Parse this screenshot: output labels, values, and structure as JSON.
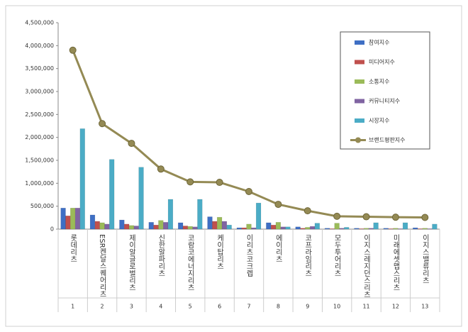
{
  "chart_data": {
    "type": "bar",
    "categories": [
      "롯데리츠",
      "ESR켄달스퀘어리츠",
      "제이알글로벌리츠",
      "신한알파리츠",
      "코람코에너지리츠",
      "케이탑리츠",
      "이리츠코크렙",
      "에이리츠",
      "코프라임리츠",
      "모두투어리츠",
      "이지스레지던스리츠",
      "미래에셋맵스리츠",
      "이지스밸류리츠"
    ],
    "ranks": [
      "1",
      "2",
      "3",
      "4",
      "5",
      "6",
      "7",
      "8",
      "9",
      "10",
      "11",
      "12",
      "13"
    ],
    "ylim": [
      0,
      4500000
    ],
    "yticks": [
      0,
      {
        "value": 500000,
        "label": "500,000"
      },
      {
        "value": 1000000,
        "label": "1,000,000"
      },
      {
        "value": 1500000,
        "label": "1,500,000"
      },
      {
        "value": 2000000,
        "label": "2,000,000"
      },
      {
        "value": 2500000,
        "label": "2,500,000"
      },
      {
        "value": 3000000,
        "label": "3,000,000"
      },
      {
        "value": 3500000,
        "label": "3,500,000"
      },
      {
        "value": 4000000,
        "label": "4,000,000"
      },
      {
        "value": 4500000,
        "label": "4,500,000"
      }
    ],
    "series": [
      {
        "name": "참여지수",
        "color": "#3f6fc4",
        "values": [
          460000,
          310000,
          200000,
          150000,
          140000,
          270000,
          30000,
          140000,
          50000,
          20000,
          20000,
          20000,
          30000
        ]
      },
      {
        "name": "미디어지수",
        "color": "#c0504d",
        "values": [
          290000,
          170000,
          110000,
          90000,
          70000,
          170000,
          30000,
          90000,
          20000,
          10000,
          10000,
          10000,
          10000
        ]
      },
      {
        "name": "소통지수",
        "color": "#9bbb59",
        "values": [
          460000,
          140000,
          80000,
          190000,
          60000,
          260000,
          110000,
          150000,
          40000,
          130000,
          20000,
          20000,
          20000
        ]
      },
      {
        "name": "커뮤니티지수",
        "color": "#8064a2",
        "values": [
          460000,
          110000,
          70000,
          150000,
          50000,
          170000,
          30000,
          50000,
          60000,
          20000,
          20000,
          10000,
          10000
        ]
      },
      {
        "name": "시장지수",
        "color": "#4bacc6",
        "values": [
          2190000,
          1520000,
          1350000,
          650000,
          650000,
          90000,
          570000,
          50000,
          130000,
          40000,
          140000,
          140000,
          110000
        ]
      },
      {
        "name": "브랜드평판지수",
        "color": "#948a54",
        "type": "line",
        "values": [
          3900000,
          2300000,
          1870000,
          1310000,
          1030000,
          1020000,
          820000,
          540000,
          400000,
          280000,
          270000,
          260000,
          255000
        ]
      }
    ]
  }
}
